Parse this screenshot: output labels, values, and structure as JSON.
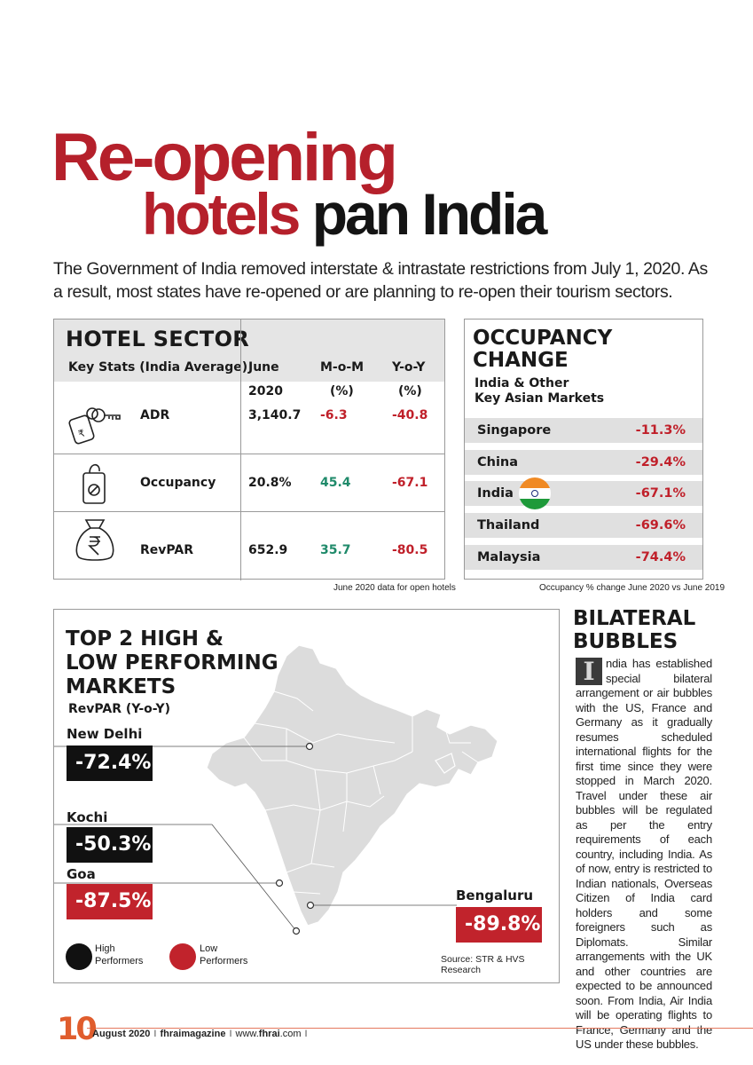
{
  "title": {
    "line1_red": "Re-opening",
    "line2_red": "hotels",
    "line2_black": "pan India"
  },
  "intro": "The Government of India removed interstate & intrastate restrictions from July 1, 2020. As a result, most states have re-opened or are planning to re-open their tourism sectors.",
  "hotel_sector": {
    "title": "HOTEL SECTOR",
    "headers": {
      "key": "Key Stats (India Average)",
      "june": "June",
      "mom": "M-o-M",
      "yoy": "Y-o-Y"
    },
    "subheaders": {
      "june": "2020",
      "mom": "(%)",
      "yoy": "(%)"
    },
    "rows": [
      {
        "icon": "key-icon",
        "label": "ADR",
        "june": "3,140.7",
        "mom": "-6.3",
        "yoy": "-40.8"
      },
      {
        "icon": "do-not-disturb-sign-icon",
        "label": "Occupancy",
        "june": "20.8%",
        "mom": "45.4",
        "yoy": "-67.1"
      },
      {
        "icon": "money-bag-icon",
        "label": "RevPAR",
        "june": "652.9",
        "mom": "35.7",
        "yoy": "-80.5"
      }
    ],
    "note": "June 2020 data for open hotels",
    "colors": {
      "negative": "#c0202a",
      "positive": "#1f8a6a",
      "header_bg": "#e5e5e5"
    }
  },
  "occupancy_change": {
    "title_line1": "OCCUPANCY",
    "title_line2": "CHANGE",
    "subtitle_line1": "India & Other",
    "subtitle_line2": "Key Asian Markets",
    "rows": [
      {
        "country": "Singapore",
        "value": "-11.3%"
      },
      {
        "country": "China",
        "value": "-29.4%"
      },
      {
        "country": "India",
        "value": "-67.1%",
        "icon": "india-flag-icon"
      },
      {
        "country": "Thailand",
        "value": "-69.6%"
      },
      {
        "country": "Malaysia",
        "value": "-74.4%"
      }
    ],
    "note": "Occupancy % change June 2020 vs June 2019"
  },
  "markets": {
    "title_line1": "TOP 2 HIGH &",
    "title_line2": "LOW PERFORMING",
    "title_line3": "MARKETS",
    "metric": "RevPAR (Y-o-Y)",
    "cities": [
      {
        "name": "New Delhi",
        "value": "-72.4%",
        "type": "high"
      },
      {
        "name": "Kochi",
        "value": "-50.3%",
        "type": "high"
      },
      {
        "name": "Goa",
        "value": "-87.5%",
        "type": "low"
      },
      {
        "name": "Bengaluru",
        "value": "-89.8%",
        "type": "low"
      }
    ],
    "legend": {
      "high_line1": "High",
      "high_line2": "Performers",
      "low_line1": "Low",
      "low_line2": "Performers"
    },
    "source": "Source: STR & HVS Research",
    "colors": {
      "high": "#111111",
      "low": "#c1232c",
      "map": "#dcdcdc"
    }
  },
  "bilateral_bubbles": {
    "title_line1": "BILATERAL",
    "title_line2": "BUBBLES",
    "dropcap": "I",
    "body": "ndia has established special bilateral arrangement or air bubbles with the US, France and Germany as it gradually resumes scheduled international flights for the first time since they were stopped in March 2020. Travel under these air bubbles will be regulated as per the entry requirements of each country, including India. As of now, entry is restricted to Indian nationals, Overseas Citizen of India card holders and some foreigners such as Diplomats. Similar arrangements with the UK and other countries are expected to be announced soon. From India, Air India will be operating flights to France, Germany and the US under these bubbles."
  },
  "footer": {
    "page": "10",
    "date": "August 2020",
    "magazine": "fhraimagazine",
    "web_prefix": "www.",
    "web_bold": "fhrai",
    "web_suffix": ".com",
    "separator": "I"
  }
}
